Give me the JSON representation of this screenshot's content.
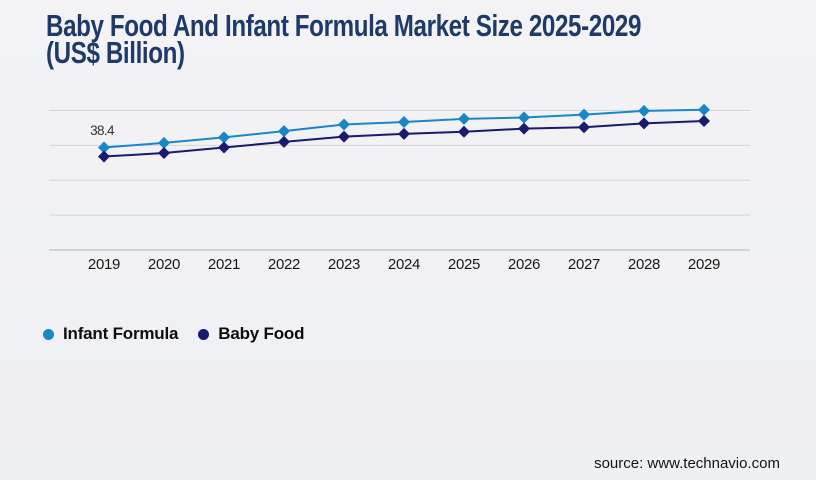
{
  "page": {
    "title_line1": "Baby Food And Infant Formula Market Size 2025-2029",
    "title_line2": "(US$ Billion)",
    "title_color": "#1f3a68",
    "background": "#f1f2f4",
    "source": "source: www.technavio.com"
  },
  "chart_data": {
    "type": "line",
    "title": "Baby Food And Infant Formula Market Size 2025-2029 (US$ Billion)",
    "x": [
      2019,
      2020,
      2021,
      2022,
      2023,
      2024,
      2025,
      2026,
      2027,
      2028,
      2029
    ],
    "series": [
      {
        "name": "Infant Formula",
        "color": "#1787c9",
        "marker": "diamond",
        "values": [
          38.4,
          39.7,
          41.3,
          43.1,
          45.0,
          45.7,
          46.6,
          47.0,
          47.8,
          48.9,
          49.2
        ]
      },
      {
        "name": "Baby Food",
        "color": "#1a1a6e",
        "marker": "diamond",
        "values": [
          35.8,
          36.8,
          38.4,
          40.0,
          41.5,
          42.3,
          42.9,
          43.8,
          44.2,
          45.3,
          46.0
        ]
      }
    ],
    "xlabel": "",
    "ylabel": "",
    "ylim": [
      9,
      49
    ],
    "grid_step": 10,
    "grid": true,
    "y_axis_labels_visible": false,
    "legend_position": "bottom-left",
    "gridline_color": "#d5d6d9",
    "axis_line_color": "#b4b6ba",
    "annotations": [
      {
        "series": "Infant Formula",
        "x": 2019,
        "text": "38.4"
      }
    ]
  }
}
